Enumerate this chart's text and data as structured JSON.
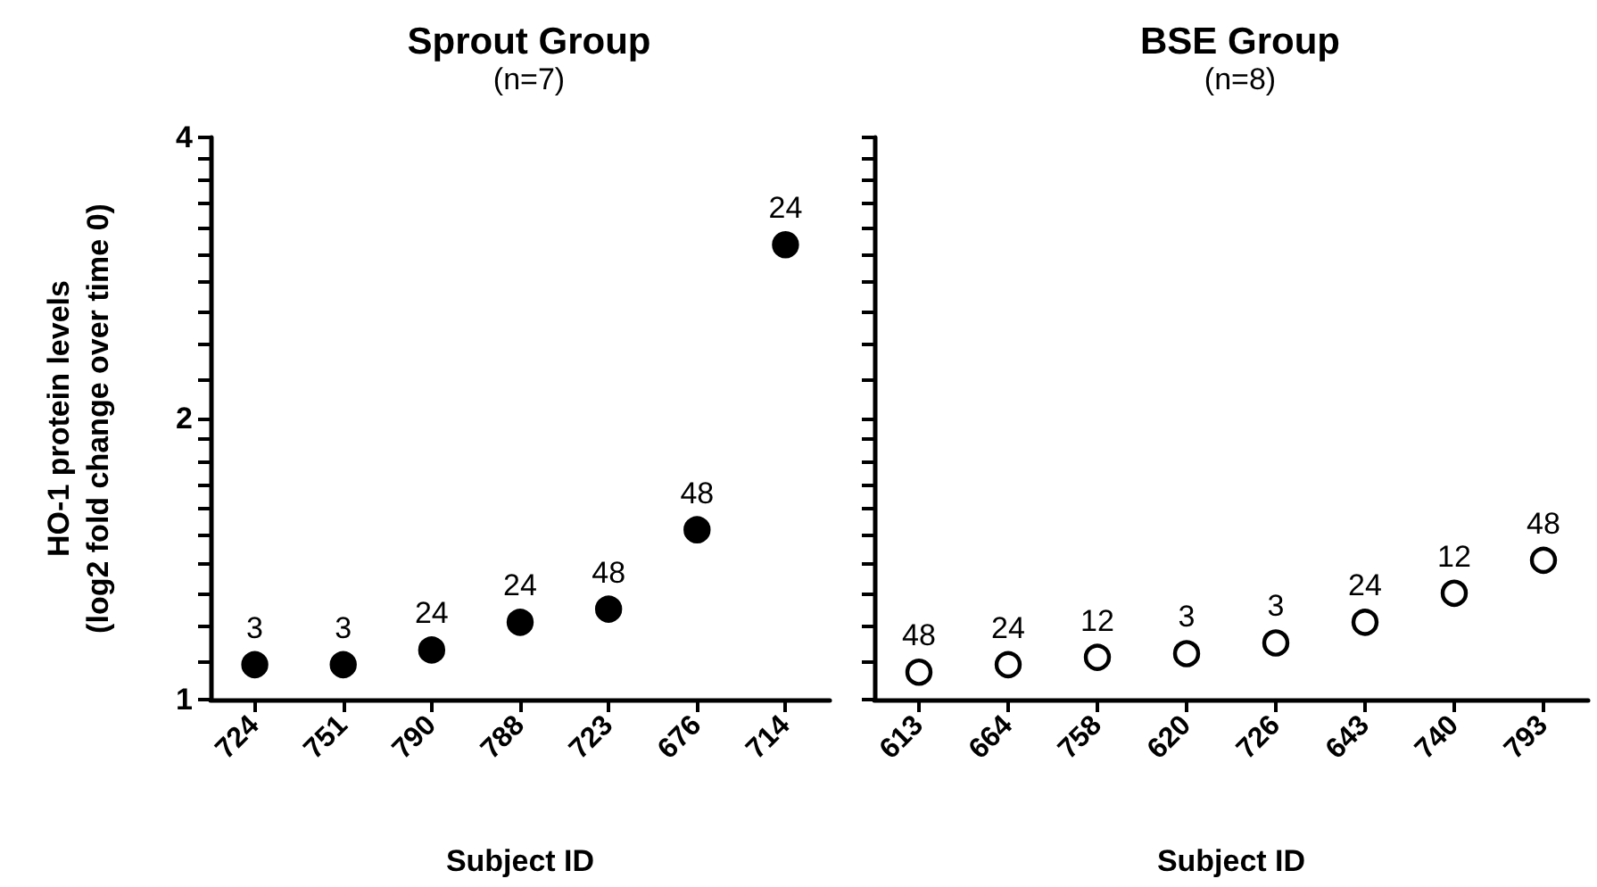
{
  "chart_data": [
    {
      "type": "scatter",
      "title": "Sprout Group",
      "subtitle": "(n=7)",
      "xlabel": "Subject ID",
      "ylabel": "HO-1 protein levels\n(log2 fold change over time 0)",
      "log": "y",
      "marker": "circle",
      "categories": [
        "724",
        "751",
        "790",
        "788",
        "723",
        "676",
        "714"
      ],
      "series": [
        {
          "color": "#000000",
          "values": [
            1.09,
            1.09,
            1.13,
            1.21,
            1.25,
            1.52,
            3.07
          ]
        }
      ],
      "ylim": [
        1,
        4
      ],
      "yticks": [
        1,
        {
          "value": 1.1,
          "label": null
        },
        {
          "value": 1.2,
          "label": null
        },
        {
          "value": 1.3,
          "label": null
        },
        {
          "value": 1.4,
          "label": null
        },
        {
          "value": 1.5,
          "label": null
        },
        {
          "value": 1.6,
          "label": null
        },
        {
          "value": 1.7,
          "label": null
        },
        {
          "value": 1.8,
          "label": null
        },
        {
          "value": 1.9,
          "label": null
        },
        2,
        {
          "value": 2.2,
          "label": null
        },
        {
          "value": 2.4,
          "label": null
        },
        {
          "value": 2.6,
          "label": null
        },
        {
          "value": 2.8,
          "label": null
        },
        {
          "value": 3,
          "label": null
        },
        {
          "value": 3.2,
          "label": null
        },
        {
          "value": 3.4,
          "label": null
        },
        {
          "value": 3.6,
          "label": null
        },
        {
          "value": 3.8,
          "label": null
        },
        4
      ],
      "annotations": [
        {
          "text": "3",
          "x": "724",
          "y": 1.09
        },
        {
          "text": "3",
          "x": "751",
          "y": 1.09
        },
        {
          "text": "24",
          "x": "790",
          "y": 1.13
        },
        {
          "text": "24",
          "x": "788",
          "y": 1.21
        },
        {
          "text": "48",
          "x": "723",
          "y": 1.25
        },
        {
          "text": "48",
          "x": "676",
          "y": 1.52
        },
        {
          "text": "24",
          "x": "714",
          "y": 3.07
        }
      ]
    },
    {
      "type": "scatter",
      "title": "BSE Group",
      "subtitle": "(n=8)",
      "xlabel": "Subject ID",
      "log": "y",
      "marker": "circle",
      "tick_labels": "x",
      "categories": [
        "613",
        "664",
        "758",
        "620",
        "726",
        "643",
        "740",
        "793"
      ],
      "series": [
        {
          "color": "#ffffff",
          "values": [
            1.07,
            1.09,
            1.11,
            1.12,
            1.15,
            1.21,
            1.3,
            1.41
          ]
        }
      ],
      "ylim": [
        1,
        4
      ],
      "yticks": [
        {
          "value": 1,
          "label": null
        },
        {
          "value": 1.1,
          "label": null
        },
        {
          "value": 1.2,
          "label": null
        },
        {
          "value": 1.3,
          "label": null
        },
        {
          "value": 1.4,
          "label": null
        },
        {
          "value": 1.5,
          "label": null
        },
        {
          "value": 1.6,
          "label": null
        },
        {
          "value": 1.7,
          "label": null
        },
        {
          "value": 1.8,
          "label": null
        },
        {
          "value": 1.9,
          "label": null
        },
        {
          "value": 2,
          "label": null
        },
        {
          "value": 2.2,
          "label": null
        },
        {
          "value": 2.4,
          "label": null
        },
        {
          "value": 2.6,
          "label": null
        },
        {
          "value": 2.8,
          "label": null
        },
        {
          "value": 3,
          "label": null
        },
        {
          "value": 3.2,
          "label": null
        },
        {
          "value": 3.4,
          "label": null
        },
        {
          "value": 3.6,
          "label": null
        },
        {
          "value": 3.8,
          "label": null
        },
        {
          "value": 4,
          "label": null
        }
      ],
      "annotations": [
        {
          "text": "48",
          "x": "613",
          "y": 1.07
        },
        {
          "text": "24",
          "x": "664",
          "y": 1.09
        },
        {
          "text": "12",
          "x": "758",
          "y": 1.11
        },
        {
          "text": "3",
          "x": "620",
          "y": 1.12
        },
        {
          "text": "3",
          "x": "726",
          "y": 1.15
        },
        {
          "text": "24",
          "x": "643",
          "y": 1.21
        },
        {
          "text": "12",
          "x": "740",
          "y": 1.3
        },
        {
          "text": "48",
          "x": "793",
          "y": 1.41
        }
      ]
    }
  ]
}
